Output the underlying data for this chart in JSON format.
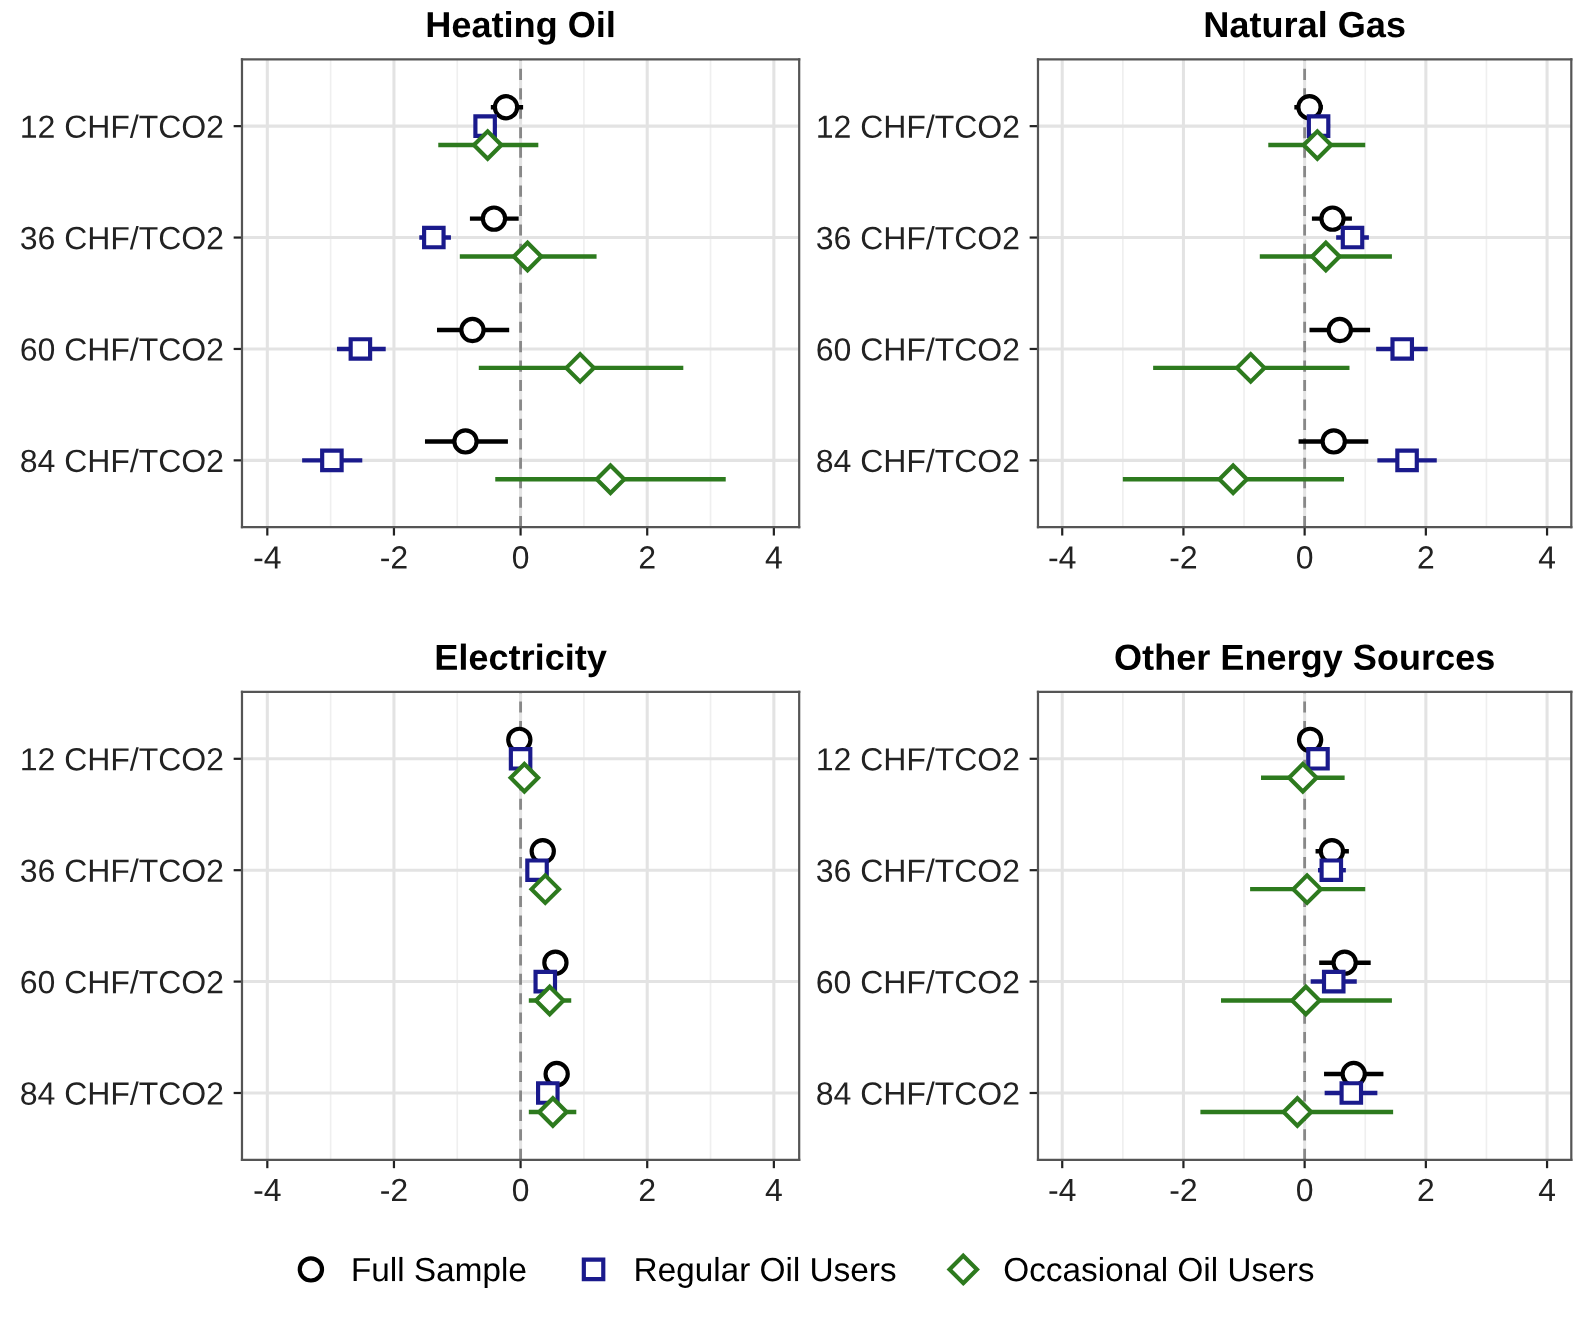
{
  "chart_data": [
    {
      "type": "scatter",
      "orientation": "horizontal",
      "title": "Heating Oil",
      "categories": [
        "12 CHF/TCO2",
        "36 CHF/TCO2",
        "60 CHF/TCO2",
        "84 CHF/TCO2"
      ],
      "xlim": [
        -4.4,
        4.4
      ],
      "xticks": [
        -4,
        -2,
        0,
        2,
        4
      ],
      "grid": true,
      "legend": "bottom",
      "ref_lines": [
        {
          "axis": "x",
          "value": 0,
          "color": "#888888",
          "line_style": "dashed"
        }
      ],
      "series": [
        {
          "name": "Full Sample",
          "color": "#000000",
          "marker": "circle",
          "values": [
            -0.23,
            -0.42,
            -0.76,
            -0.87
          ],
          "errors": [
            [
              -0.47,
              0.04
            ],
            [
              -0.8,
              -0.03
            ],
            [
              -1.32,
              -0.18
            ],
            [
              -1.51,
              -0.2
            ]
          ]
        },
        {
          "name": "Regular Oil Users",
          "color": "#1a1a8c",
          "marker": "square",
          "values": [
            -0.56,
            -1.37,
            -2.53,
            -2.98
          ],
          "errors": [
            [
              -0.72,
              -0.38
            ],
            [
              -1.6,
              -1.1
            ],
            [
              -2.9,
              -2.13
            ],
            [
              -3.45,
              -2.5
            ]
          ]
        },
        {
          "name": "Occasional Oil Users",
          "color": "#2d7a1e",
          "marker": "diamond",
          "values": [
            -0.52,
            0.11,
            0.94,
            1.42
          ],
          "errors": [
            [
              -1.3,
              0.28
            ],
            [
              -0.96,
              1.2
            ],
            [
              -0.66,
              2.57
            ],
            [
              -0.4,
              3.24
            ]
          ]
        }
      ]
    },
    {
      "type": "scatter",
      "orientation": "horizontal",
      "title": "Natural Gas",
      "categories": [
        "12 CHF/TCO2",
        "36 CHF/TCO2",
        "60 CHF/TCO2",
        "84 CHF/TCO2"
      ],
      "xlim": [
        -4.4,
        4.4
      ],
      "xticks": [
        -4,
        -2,
        0,
        2,
        4
      ],
      "grid": true,
      "ref_lines": [
        {
          "axis": "x",
          "value": 0,
          "color": "#888888",
          "line_style": "dashed"
        }
      ],
      "series": [
        {
          "color": "#000000",
          "marker": "circle",
          "values": [
            0.08,
            0.46,
            0.58,
            0.48
          ],
          "errors": [
            [
              -0.17,
              0.3
            ],
            [
              0.12,
              0.78
            ],
            [
              0.08,
              1.08
            ],
            [
              -0.1,
              1.05
            ]
          ]
        },
        {
          "color": "#1a1a8c",
          "marker": "square",
          "values": [
            0.23,
            0.79,
            1.61,
            1.69
          ],
          "errors": [
            [
              0.05,
              0.42
            ],
            [
              0.52,
              1.06
            ],
            [
              1.18,
              2.03
            ],
            [
              1.2,
              2.18
            ]
          ]
        },
        {
          "color": "#2d7a1e",
          "marker": "diamond",
          "values": [
            0.21,
            0.35,
            -0.89,
            -1.18
          ],
          "errors": [
            [
              -0.6,
              1.0
            ],
            [
              -0.74,
              1.44
            ],
            [
              -2.5,
              0.74
            ],
            [
              -3.0,
              0.65
            ]
          ]
        }
      ]
    },
    {
      "type": "scatter",
      "orientation": "horizontal",
      "title": "Electricity",
      "categories": [
        "12 CHF/TCO2",
        "36 CHF/TCO2",
        "60 CHF/TCO2",
        "84 CHF/TCO2"
      ],
      "xlim": [
        -4.4,
        4.4
      ],
      "xticks": [
        -4,
        -2,
        0,
        2,
        4
      ],
      "grid": true,
      "ref_lines": [
        {
          "axis": "x",
          "value": 0,
          "color": "#888888",
          "line_style": "dashed"
        }
      ],
      "series": [
        {
          "color": "#000000",
          "marker": "circle",
          "values": [
            -0.02,
            0.35,
            0.55,
            0.57
          ],
          "errors": [
            null,
            null,
            null,
            null
          ]
        },
        {
          "color": "#1a1a8c",
          "marker": "square",
          "values": [
            0.0,
            0.26,
            0.39,
            0.43
          ],
          "errors": [
            null,
            null,
            [
              0.3,
              0.48
            ],
            [
              0.3,
              0.56
            ]
          ]
        },
        {
          "color": "#2d7a1e",
          "marker": "diamond",
          "values": [
            0.06,
            0.39,
            0.46,
            0.51
          ],
          "errors": [
            null,
            [
              0.18,
              0.6
            ],
            [
              0.13,
              0.8
            ],
            [
              0.13,
              0.88
            ]
          ]
        }
      ]
    },
    {
      "type": "scatter",
      "orientation": "horizontal",
      "title": "Other Energy Sources",
      "categories": [
        "12 CHF/TCO2",
        "36 CHF/TCO2",
        "60 CHF/TCO2",
        "84 CHF/TCO2"
      ],
      "xlim": [
        -4.4,
        4.4
      ],
      "xticks": [
        -4,
        -2,
        0,
        2,
        4
      ],
      "grid": true,
      "ref_lines": [
        {
          "axis": "x",
          "value": 0,
          "color": "#888888",
          "line_style": "dashed"
        }
      ],
      "series": [
        {
          "color": "#000000",
          "marker": "circle",
          "values": [
            0.09,
            0.45,
            0.66,
            0.81
          ],
          "errors": [
            [
              -0.1,
              0.3
            ],
            [
              0.18,
              0.73
            ],
            [
              0.24,
              1.09
            ],
            [
              0.32,
              1.3
            ]
          ]
        },
        {
          "color": "#1a1a8c",
          "marker": "square",
          "values": [
            0.22,
            0.44,
            0.48,
            0.77
          ],
          "errors": [
            [
              0.05,
              0.4
            ],
            [
              0.22,
              0.68
            ],
            [
              0.1,
              0.86
            ],
            [
              0.33,
              1.2
            ]
          ]
        },
        {
          "color": "#2d7a1e",
          "marker": "diamond",
          "values": [
            -0.03,
            0.04,
            0.02,
            -0.12
          ],
          "errors": [
            [
              -0.72,
              0.66
            ],
            [
              -0.9,
              1.0
            ],
            [
              -1.38,
              1.44
            ],
            [
              -1.72,
              1.46
            ]
          ]
        }
      ]
    }
  ]
}
